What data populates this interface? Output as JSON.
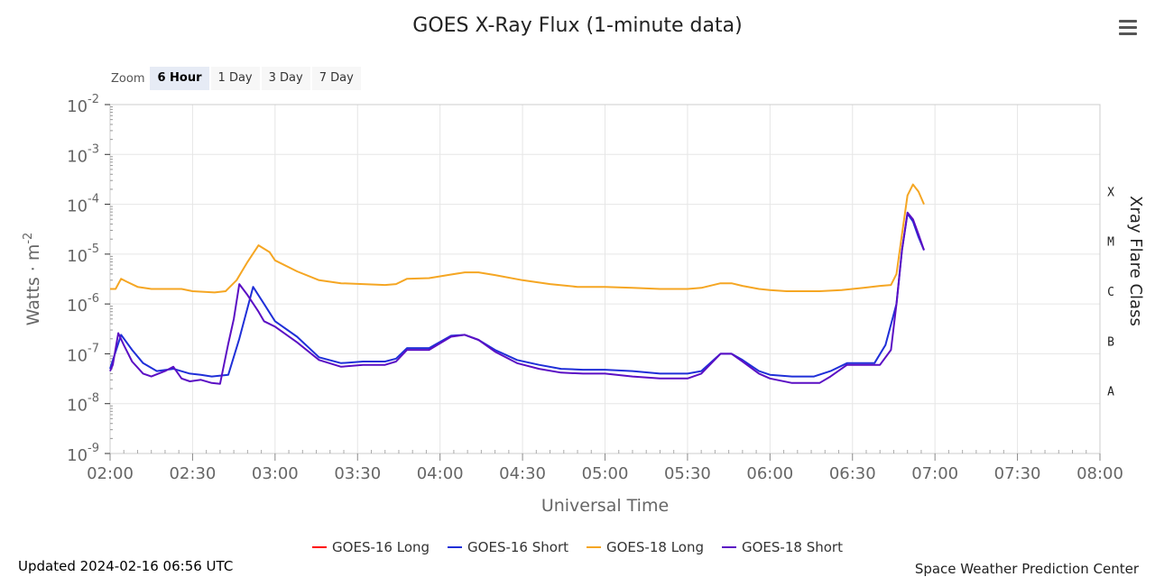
{
  "header": {
    "title": "GOES X-Ray Flux (1-minute data)",
    "menu_icon": "hamburger-menu-icon"
  },
  "zoom": {
    "label": "Zoom",
    "options": [
      "6 Hour",
      "1 Day",
      "3 Day",
      "7 Day"
    ],
    "selected": "6 Hour"
  },
  "footer": {
    "updated": "Updated 2024-02-16 06:56 UTC",
    "credit": "Space Weather Prediction Center"
  },
  "chart_data": {
    "type": "line",
    "title": "GOES X-Ray Flux (1-minute data)",
    "xlabel": "Universal Time",
    "ylabel": "Watts · m",
    "ylabel_exp": "-2",
    "right_axis_label": "Xray Flare Class",
    "y_scale": "log",
    "ylim": [
      1e-09,
      0.01
    ],
    "xlim": [
      "02:00",
      "08:00"
    ],
    "x_ticks": [
      "02:00",
      "02:30",
      "03:00",
      "03:30",
      "04:00",
      "04:30",
      "05:00",
      "05:30",
      "06:00",
      "06:30",
      "07:00",
      "07:30",
      "08:00"
    ],
    "y_ticks": [
      {
        "base": "10",
        "exp": "-2",
        "value": 0.01
      },
      {
        "base": "10",
        "exp": "-3",
        "value": 0.001
      },
      {
        "base": "10",
        "exp": "-4",
        "value": 0.0001
      },
      {
        "base": "10",
        "exp": "-5",
        "value": 1e-05
      },
      {
        "base": "10",
        "exp": "-6",
        "value": 1e-06
      },
      {
        "base": "10",
        "exp": "-7",
        "value": 1e-07
      },
      {
        "base": "10",
        "exp": "-8",
        "value": 1e-08
      },
      {
        "base": "10",
        "exp": "-9",
        "value": 1e-09
      }
    ],
    "flare_classes": [
      {
        "label": "X",
        "value": 0.00018
      },
      {
        "label": "M",
        "value": 1.8e-05
      },
      {
        "label": "C",
        "value": 1.8e-06
      },
      {
        "label": "B",
        "value": 1.8e-07
      },
      {
        "label": "A",
        "value": 1.8e-08
      }
    ],
    "grid": true,
    "legend_position": "bottom",
    "series": [
      {
        "name": "GOES-16 Long",
        "color": "#ff0000",
        "x": [],
        "y": []
      },
      {
        "name": "GOES-16 Short",
        "color": "#1f2fd8",
        "x": [
          "02:00",
          "02:04",
          "02:08",
          "02:12",
          "02:17",
          "02:23",
          "02:29",
          "02:33",
          "02:37",
          "02:43",
          "02:47",
          "02:52",
          "02:56",
          "03:00",
          "03:08",
          "03:16",
          "03:24",
          "03:32",
          "03:40",
          "03:44",
          "03:48",
          "03:56",
          "04:04",
          "04:09",
          "04:14",
          "04:20",
          "04:28",
          "04:36",
          "04:44",
          "04:52",
          "05:00",
          "05:10",
          "05:20",
          "05:30",
          "05:35",
          "05:42",
          "05:46",
          "05:50",
          "05:56",
          "06:00",
          "06:08",
          "06:16",
          "06:22",
          "06:28",
          "06:34",
          "06:38",
          "06:42",
          "06:46",
          "06:48",
          "06:50",
          "06:52",
          "06:54",
          "06:56"
        ],
        "y": [
          5e-08,
          2.4e-07,
          1.2e-07,
          6.5e-08,
          4.5e-08,
          5e-08,
          4e-08,
          3.8e-08,
          3.5e-08,
          3.8e-08,
          2e-07,
          2.2e-06,
          1e-06,
          4.5e-07,
          2.2e-07,
          8.5e-08,
          6.5e-08,
          7e-08,
          7e-08,
          8e-08,
          1.3e-07,
          1.3e-07,
          2.3e-07,
          2.4e-07,
          1.9e-07,
          1.2e-07,
          7.5e-08,
          6e-08,
          5e-08,
          4.8e-08,
          4.8e-08,
          4.5e-08,
          4e-08,
          4e-08,
          4.5e-08,
          1e-07,
          1e-07,
          7.5e-08,
          4.5e-08,
          3.8e-08,
          3.5e-08,
          3.5e-08,
          4.5e-08,
          6.5e-08,
          6.5e-08,
          6.5e-08,
          1.5e-07,
          1e-06,
          1.2e-05,
          6.5e-05,
          4.5e-05,
          2.2e-05,
          1.2e-05
        ]
      },
      {
        "name": "GOES-18 Long",
        "color": "#f5a623",
        "x": [
          "02:00",
          "02:02",
          "02:04",
          "02:06",
          "02:10",
          "02:15",
          "02:20",
          "02:26",
          "02:30",
          "02:38",
          "02:42",
          "02:46",
          "02:50",
          "02:54",
          "02:58",
          "03:00",
          "03:08",
          "03:16",
          "03:24",
          "03:32",
          "03:40",
          "03:44",
          "03:48",
          "03:56",
          "04:04",
          "04:09",
          "04:14",
          "04:20",
          "04:30",
          "04:40",
          "04:50",
          "05:00",
          "05:10",
          "05:20",
          "05:30",
          "05:35",
          "05:42",
          "05:46",
          "05:50",
          "05:56",
          "06:00",
          "06:06",
          "06:12",
          "06:18",
          "06:26",
          "06:34",
          "06:40",
          "06:44",
          "06:46",
          "06:48",
          "06:50",
          "06:52",
          "06:54",
          "06:56"
        ],
        "y": [
          2e-06,
          2e-06,
          3.2e-06,
          2.8e-06,
          2.2e-06,
          2e-06,
          2e-06,
          2e-06,
          1.8e-06,
          1.7e-06,
          1.8e-06,
          3e-06,
          7e-06,
          1.5e-05,
          1.1e-05,
          7.5e-06,
          4.5e-06,
          3e-06,
          2.6e-06,
          2.5e-06,
          2.4e-06,
          2.5e-06,
          3.2e-06,
          3.3e-06,
          3.9e-06,
          4.3e-06,
          4.3e-06,
          3.8e-06,
          3e-06,
          2.5e-06,
          2.2e-06,
          2.2e-06,
          2.1e-06,
          2e-06,
          2e-06,
          2.1e-06,
          2.6e-06,
          2.6e-06,
          2.3e-06,
          2e-06,
          1.9e-06,
          1.8e-06,
          1.8e-06,
          1.8e-06,
          1.9e-06,
          2.1e-06,
          2.3e-06,
          2.4e-06,
          4e-06,
          2.5e-05,
          0.00015,
          0.00025,
          0.00018,
          0.0001
        ]
      },
      {
        "name": "GOES-18 Short",
        "color": "#5b0fc4",
        "x": [
          "02:00",
          "02:01",
          "02:03",
          "02:05",
          "02:08",
          "02:12",
          "02:15",
          "02:20",
          "02:23",
          "02:26",
          "02:29",
          "02:33",
          "02:37",
          "02:40",
          "02:43",
          "02:45",
          "02:47",
          "02:50",
          "02:54",
          "02:56",
          "03:00",
          "03:08",
          "03:16",
          "03:24",
          "03:32",
          "03:40",
          "03:44",
          "03:48",
          "03:56",
          "04:04",
          "04:09",
          "04:14",
          "04:20",
          "04:28",
          "04:36",
          "04:44",
          "04:52",
          "05:00",
          "05:10",
          "05:20",
          "05:30",
          "05:35",
          "05:42",
          "05:46",
          "05:50",
          "05:56",
          "06:00",
          "06:08",
          "06:14",
          "06:18",
          "06:22",
          "06:28",
          "06:34",
          "06:40",
          "06:44",
          "06:46",
          "06:48",
          "06:50",
          "06:52",
          "06:54",
          "06:56"
        ],
        "y": [
          4.5e-08,
          6e-08,
          2.6e-07,
          1.5e-07,
          7e-08,
          4e-08,
          3.5e-08,
          4.5e-08,
          5.5e-08,
          3.2e-08,
          2.8e-08,
          3e-08,
          2.6e-08,
          2.5e-08,
          1.6e-07,
          5e-07,
          2.5e-06,
          1.5e-06,
          7e-07,
          4.5e-07,
          3.5e-07,
          1.7e-07,
          7.5e-08,
          5.5e-08,
          6e-08,
          6e-08,
          7e-08,
          1.2e-07,
          1.2e-07,
          2.2e-07,
          2.4e-07,
          1.9e-07,
          1.1e-07,
          6.5e-08,
          5e-08,
          4.2e-08,
          4e-08,
          4e-08,
          3.5e-08,
          3.2e-08,
          3.2e-08,
          4e-08,
          1e-07,
          1e-07,
          7e-08,
          4e-08,
          3.2e-08,
          2.6e-08,
          2.6e-08,
          2.6e-08,
          3.5e-08,
          6e-08,
          6e-08,
          6e-08,
          1.2e-07,
          1e-06,
          1.2e-05,
          6.8e-05,
          5e-05,
          2.5e-05,
          1.2e-05
        ]
      }
    ]
  }
}
